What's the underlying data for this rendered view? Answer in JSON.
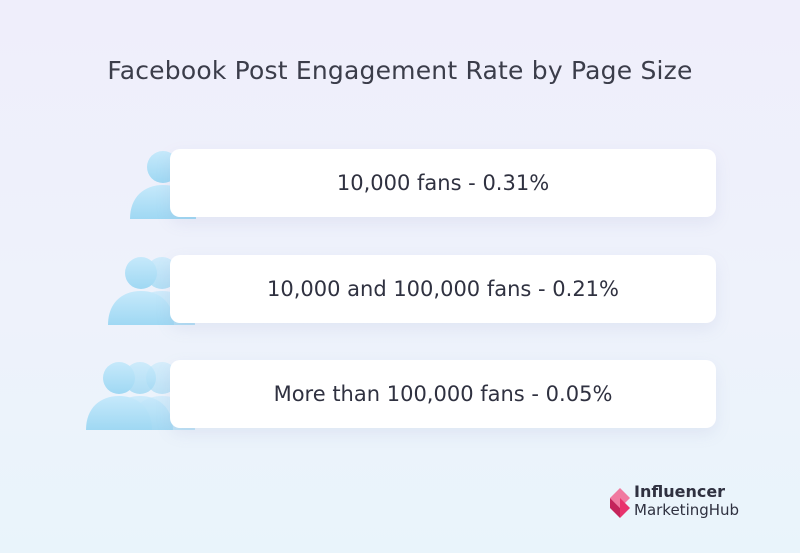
{
  "title": "Facebook Post Engagement Rate by Page Size",
  "rows": [
    {
      "label": "10,000 fans - 0.31%",
      "icon": "person-icon"
    },
    {
      "label": "10,000 and 100,000 fans - 0.21%",
      "icon": "two-people-icon"
    },
    {
      "label": "More than 100,000 fans - 0.05%",
      "icon": "group-people-icon"
    }
  ],
  "logo": {
    "line1": "Influencer",
    "line2": "MarketingHub",
    "color": "#e8336d"
  },
  "colors": {
    "icon": "#a9dcf5",
    "icon_light": "#c4e8fa",
    "text": "#2f3140"
  }
}
